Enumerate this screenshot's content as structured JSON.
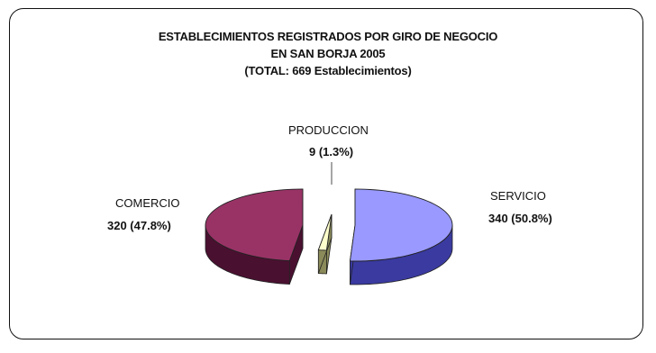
{
  "chart_data": {
    "type": "pie",
    "title": "ESTABLECIMIENTOS REGISTRADOS POR GIRO DE NEGOCIO",
    "subtitle_line2": "EN SAN BORJA 2005",
    "subtitle_line3": "(TOTAL: 669 Establecimientos)",
    "slices": [
      {
        "name": "SERVICIO",
        "value": 340,
        "value_label": "340 (50.8%)",
        "color": "#9999ff",
        "side_color": "#3a3aa0"
      },
      {
        "name": "PRODUCCION",
        "value": 9,
        "value_label": "9 (1.3%)",
        "color": "#ffffcc",
        "side_color": "#8a8a5a"
      },
      {
        "name": "COMERCIO",
        "value": 320,
        "value_label": "320 (47.8%)",
        "color": "#993366",
        "side_color": "#4a1030"
      }
    ],
    "style": "3d-exploded",
    "legend": "none"
  }
}
